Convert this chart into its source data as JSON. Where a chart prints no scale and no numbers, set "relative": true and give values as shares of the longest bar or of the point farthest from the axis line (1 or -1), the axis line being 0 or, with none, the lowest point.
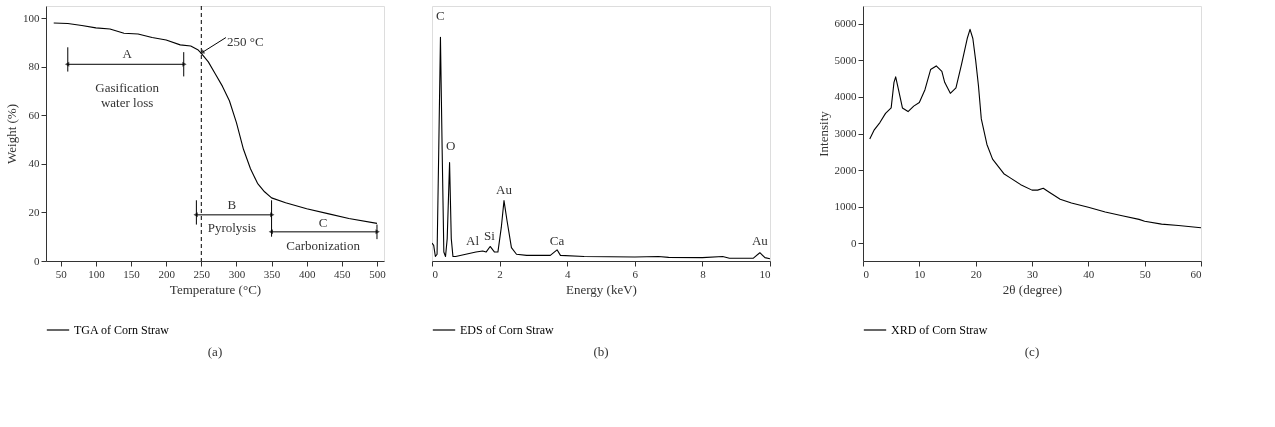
{
  "chart_data": [
    {
      "type": "line",
      "title": "(a)",
      "xlabel": "Temperature (°C)",
      "ylabel": "Weight (%)",
      "xlim": [
        29,
        510
      ],
      "ylim": [
        0,
        105
      ],
      "xticks": [
        50,
        100,
        150,
        200,
        250,
        300,
        350,
        400,
        450,
        500
      ],
      "yticks": [
        0,
        20,
        40,
        60,
        80,
        100
      ],
      "legend": "bottom",
      "grid": false,
      "series": [
        {
          "name": "TGA of Corn Straw",
          "color": "#000000",
          "x": [
            40,
            60,
            80,
            100,
            120,
            140,
            160,
            180,
            200,
            220,
            235,
            245,
            250,
            260,
            270,
            280,
            290,
            300,
            310,
            320,
            330,
            340,
            350,
            370,
            400,
            430,
            460,
            500
          ],
          "values": [
            98,
            97.8,
            97,
            96,
            95.5,
            93.8,
            93.5,
            92,
            91,
            89,
            88.5,
            87,
            85.5,
            82,
            77,
            72,
            66,
            57,
            46,
            38,
            32,
            28.5,
            26,
            24,
            21.5,
            19.5,
            17.5,
            15.5
          ]
        }
      ],
      "ref_lines": [
        {
          "axis": "x",
          "value": 250,
          "line_style": "dashed",
          "color": "#000000"
        }
      ],
      "annotations": [
        "250 °C",
        "A",
        "Gasification water loss",
        "B",
        "Pyrolysis",
        "C",
        "Carbonization"
      ]
    },
    {
      "type": "line",
      "title": "(b)",
      "xlabel": "Energy (keV)",
      "relative": true,
      "xlim": [
        0,
        10
      ],
      "xticks": [
        0,
        2,
        4,
        6,
        8,
        10
      ],
      "legend": "bottom",
      "grid": false,
      "series": [
        {
          "name": "EDS of Corn Straw",
          "color": "#000000",
          "x": [
            0,
            0.05,
            0.1,
            0.15,
            0.2,
            0.25,
            0.3,
            0.35,
            0.4,
            0.45,
            0.52,
            0.57,
            0.62,
            0.7,
            1.0,
            1.3,
            1.5,
            1.6,
            1.72,
            1.85,
            1.95,
            2.05,
            2.13,
            2.22,
            2.35,
            2.5,
            2.8,
            3.5,
            3.7,
            3.8,
            4.5,
            6,
            6.7,
            7,
            8,
            8.6,
            8.8,
            9.5,
            9.7,
            9.85,
            10
          ],
          "values": [
            0.08,
            0.07,
            0.02,
            0.03,
            0.5,
            1.0,
            0.5,
            0.04,
            0.02,
            0.1,
            0.44,
            0.1,
            0.02,
            0.02,
            0.03,
            0.04,
            0.045,
            0.04,
            0.065,
            0.04,
            0.04,
            0.15,
            0.27,
            0.18,
            0.06,
            0.03,
            0.025,
            0.025,
            0.05,
            0.025,
            0.02,
            0.018,
            0.02,
            0.016,
            0.015,
            0.02,
            0.012,
            0.012,
            0.037,
            0.015,
            0.01
          ]
        }
      ],
      "annotations": [
        "C",
        "O",
        "Au",
        "Al",
        "Si",
        "Ca",
        "Au"
      ]
    },
    {
      "type": "line",
      "title": "(c)",
      "xlabel": "2θ (degree)",
      "ylabel": "Intensity",
      "xlim": [
        0,
        60
      ],
      "ylim": [
        -490,
        6490
      ],
      "xticks": [
        0,
        10,
        20,
        30,
        40,
        50,
        60
      ],
      "yticks": [
        0,
        1000,
        2000,
        3000,
        4000,
        5000,
        6000
      ],
      "legend": "bottom",
      "grid": false,
      "series": [
        {
          "name": "XRD of Corn Straw",
          "color": "#000000",
          "x": [
            1.2,
            2,
            3,
            4,
            5,
            5.5,
            5.8,
            6.3,
            7,
            8,
            9,
            10,
            11,
            12,
            13,
            14,
            14.5,
            15.5,
            16.5,
            17.5,
            18.5,
            19,
            19.5,
            20,
            20.5,
            21,
            22,
            23,
            24,
            25,
            26,
            28,
            30,
            31,
            32,
            33,
            35,
            37,
            40,
            43,
            46,
            49,
            50,
            53,
            56,
            60
          ],
          "values": [
            2850,
            3100,
            3300,
            3550,
            3700,
            4400,
            4550,
            4200,
            3700,
            3600,
            3750,
            3850,
            4200,
            4750,
            4850,
            4700,
            4400,
            4100,
            4250,
            4900,
            5600,
            5850,
            5600,
            5000,
            4300,
            3400,
            2700,
            2300,
            2100,
            1900,
            1800,
            1600,
            1450,
            1450,
            1500,
            1400,
            1200,
            1100,
            980,
            850,
            750,
            650,
            600,
            520,
            480,
            420
          ]
        }
      ]
    }
  ]
}
